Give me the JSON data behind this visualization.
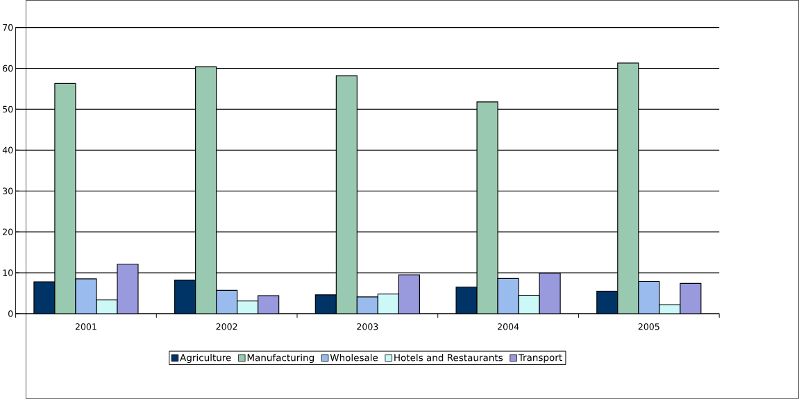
{
  "chart_data": {
    "type": "bar",
    "categories": [
      "2001",
      "2002",
      "2003",
      "2004",
      "2005"
    ],
    "series": [
      {
        "name": "Agriculture",
        "color": "#003366",
        "values": [
          7.8,
          8.2,
          4.6,
          6.5,
          5.5
        ]
      },
      {
        "name": "Manufacturing",
        "color": "#99c9b0",
        "values": [
          56.3,
          60.4,
          58.2,
          51.8,
          61.3
        ]
      },
      {
        "name": "Wholesale",
        "color": "#99bbee",
        "values": [
          8.5,
          5.7,
          4.1,
          8.6,
          7.9
        ]
      },
      {
        "name": "Hotels and Restaurants",
        "color": "#ccf8f8",
        "values": [
          3.4,
          3.1,
          4.8,
          4.5,
          2.2
        ]
      },
      {
        "name": "Transport",
        "color": "#9999dd",
        "values": [
          12.1,
          4.4,
          9.5,
          9.9,
          7.4
        ]
      }
    ],
    "ylim": [
      0,
      70
    ],
    "yticks": [
      0,
      10,
      20,
      30,
      40,
      50,
      60,
      70
    ],
    "grid": "y",
    "legend": "bottom"
  }
}
